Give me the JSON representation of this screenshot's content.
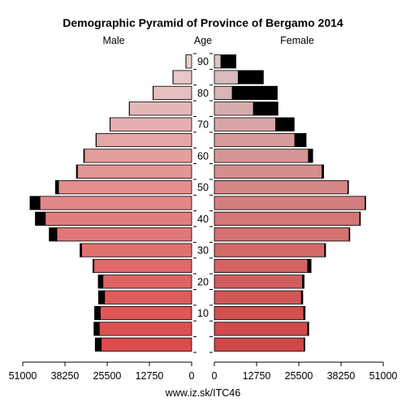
{
  "chart_data": {
    "type": "bar",
    "title": "Demographic Pyramid of Province of Bergamo 2014",
    "left_label": "Male",
    "center_label": "Age",
    "right_label": "Female",
    "footer": "www.iz.sk/ITC46",
    "age_groups": [
      "0-4",
      "5-9",
      "10-14",
      "15-19",
      "20-24",
      "25-29",
      "30-34",
      "35-39",
      "40-44",
      "45-49",
      "50-54",
      "55-59",
      "60-64",
      "65-69",
      "70-74",
      "75-79",
      "80-84",
      "85-89",
      "90-94"
    ],
    "age_ticks": [
      "10",
      "20",
      "30",
      "40",
      "50",
      "60",
      "70",
      "80",
      "90"
    ],
    "x_ticks_left": [
      "51000",
      "38250",
      "25500",
      "12750",
      "0"
    ],
    "x_ticks_right": [
      "0",
      "12750",
      "25500",
      "38250",
      "51000"
    ],
    "xlim": [
      0,
      51000
    ],
    "series": [
      {
        "name": "Male",
        "native": [
          27300,
          27900,
          27600,
          26300,
          26800,
          29500,
          33200,
          40700,
          44200,
          45800,
          40200,
          34500,
          32400,
          28800,
          24600,
          18800,
          11600,
          5600,
          1700
        ],
        "foreign": [
          1800,
          1600,
          1700,
          1800,
          1400,
          300,
          500,
          2300,
          3000,
          3000,
          900,
          300,
          200,
          100,
          50,
          50,
          50,
          50,
          30
        ]
      },
      {
        "name": "Female",
        "native": [
          27100,
          28200,
          27000,
          26300,
          26600,
          28200,
          33300,
          40700,
          43900,
          45500,
          40300,
          32500,
          28400,
          24300,
          18500,
          11800,
          5400,
          7200,
          2000
        ],
        "foreign": [
          200,
          300,
          400,
          400,
          500,
          1000,
          300,
          200,
          200,
          200,
          200,
          500,
          1300,
          3400,
          5600,
          7400,
          13600,
          7600,
          4500
        ]
      }
    ],
    "colors": {
      "native_young": "#dd4b4b",
      "native_old": "#e8d0d0",
      "foreign": "#000000",
      "outline": "#000000"
    }
  }
}
